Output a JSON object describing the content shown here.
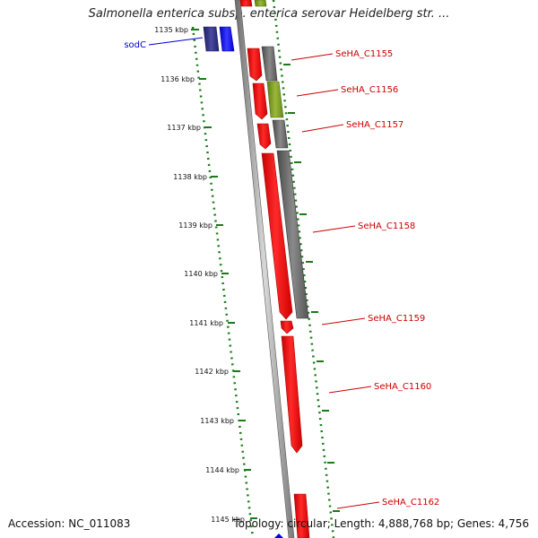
{
  "title": "Salmonella enterica subsp. enterica serovar Heidelberg str. ...",
  "accession": "Accession: NC_011083",
  "topology": "Topology: circular; Length: 4,888,768 bp; Genes: 4,756",
  "colors": {
    "forward_cds": "#0000ff",
    "reverse_cds": "#ff0000",
    "cog_gray": "#6e6e6e",
    "cog_green": "#7a9a22",
    "cog_navy": "#2a2a80",
    "tick": "#1a7a1a",
    "label_red": "#cc0000",
    "label_blue": "#0000cc",
    "backbone": "#888888"
  },
  "ticks": [
    {
      "label": "1135 kbp"
    },
    {
      "label": "1136 kbp"
    },
    {
      "label": "1137 kbp"
    },
    {
      "label": "1138 kbp"
    },
    {
      "label": "1139 kbp"
    },
    {
      "label": "1140 kbp"
    },
    {
      "label": "1141 kbp"
    },
    {
      "label": "1142 kbp"
    },
    {
      "label": "1143 kbp"
    },
    {
      "label": "1144 kbp"
    },
    {
      "label": "1145 kbp"
    }
  ],
  "genes": [
    {
      "name": "sodC",
      "strand": "forward"
    },
    {
      "name": "SeHA_C1155",
      "strand": "reverse"
    },
    {
      "name": "SeHA_C1156",
      "strand": "reverse"
    },
    {
      "name": "SeHA_C1157",
      "strand": "reverse"
    },
    {
      "name": "SeHA_C1158",
      "strand": "reverse"
    },
    {
      "name": "SeHA_C1159",
      "strand": "reverse"
    },
    {
      "name": "SeHA_C1160",
      "strand": "reverse"
    },
    {
      "name": "SeHA_C1162",
      "strand": "reverse"
    }
  ]
}
